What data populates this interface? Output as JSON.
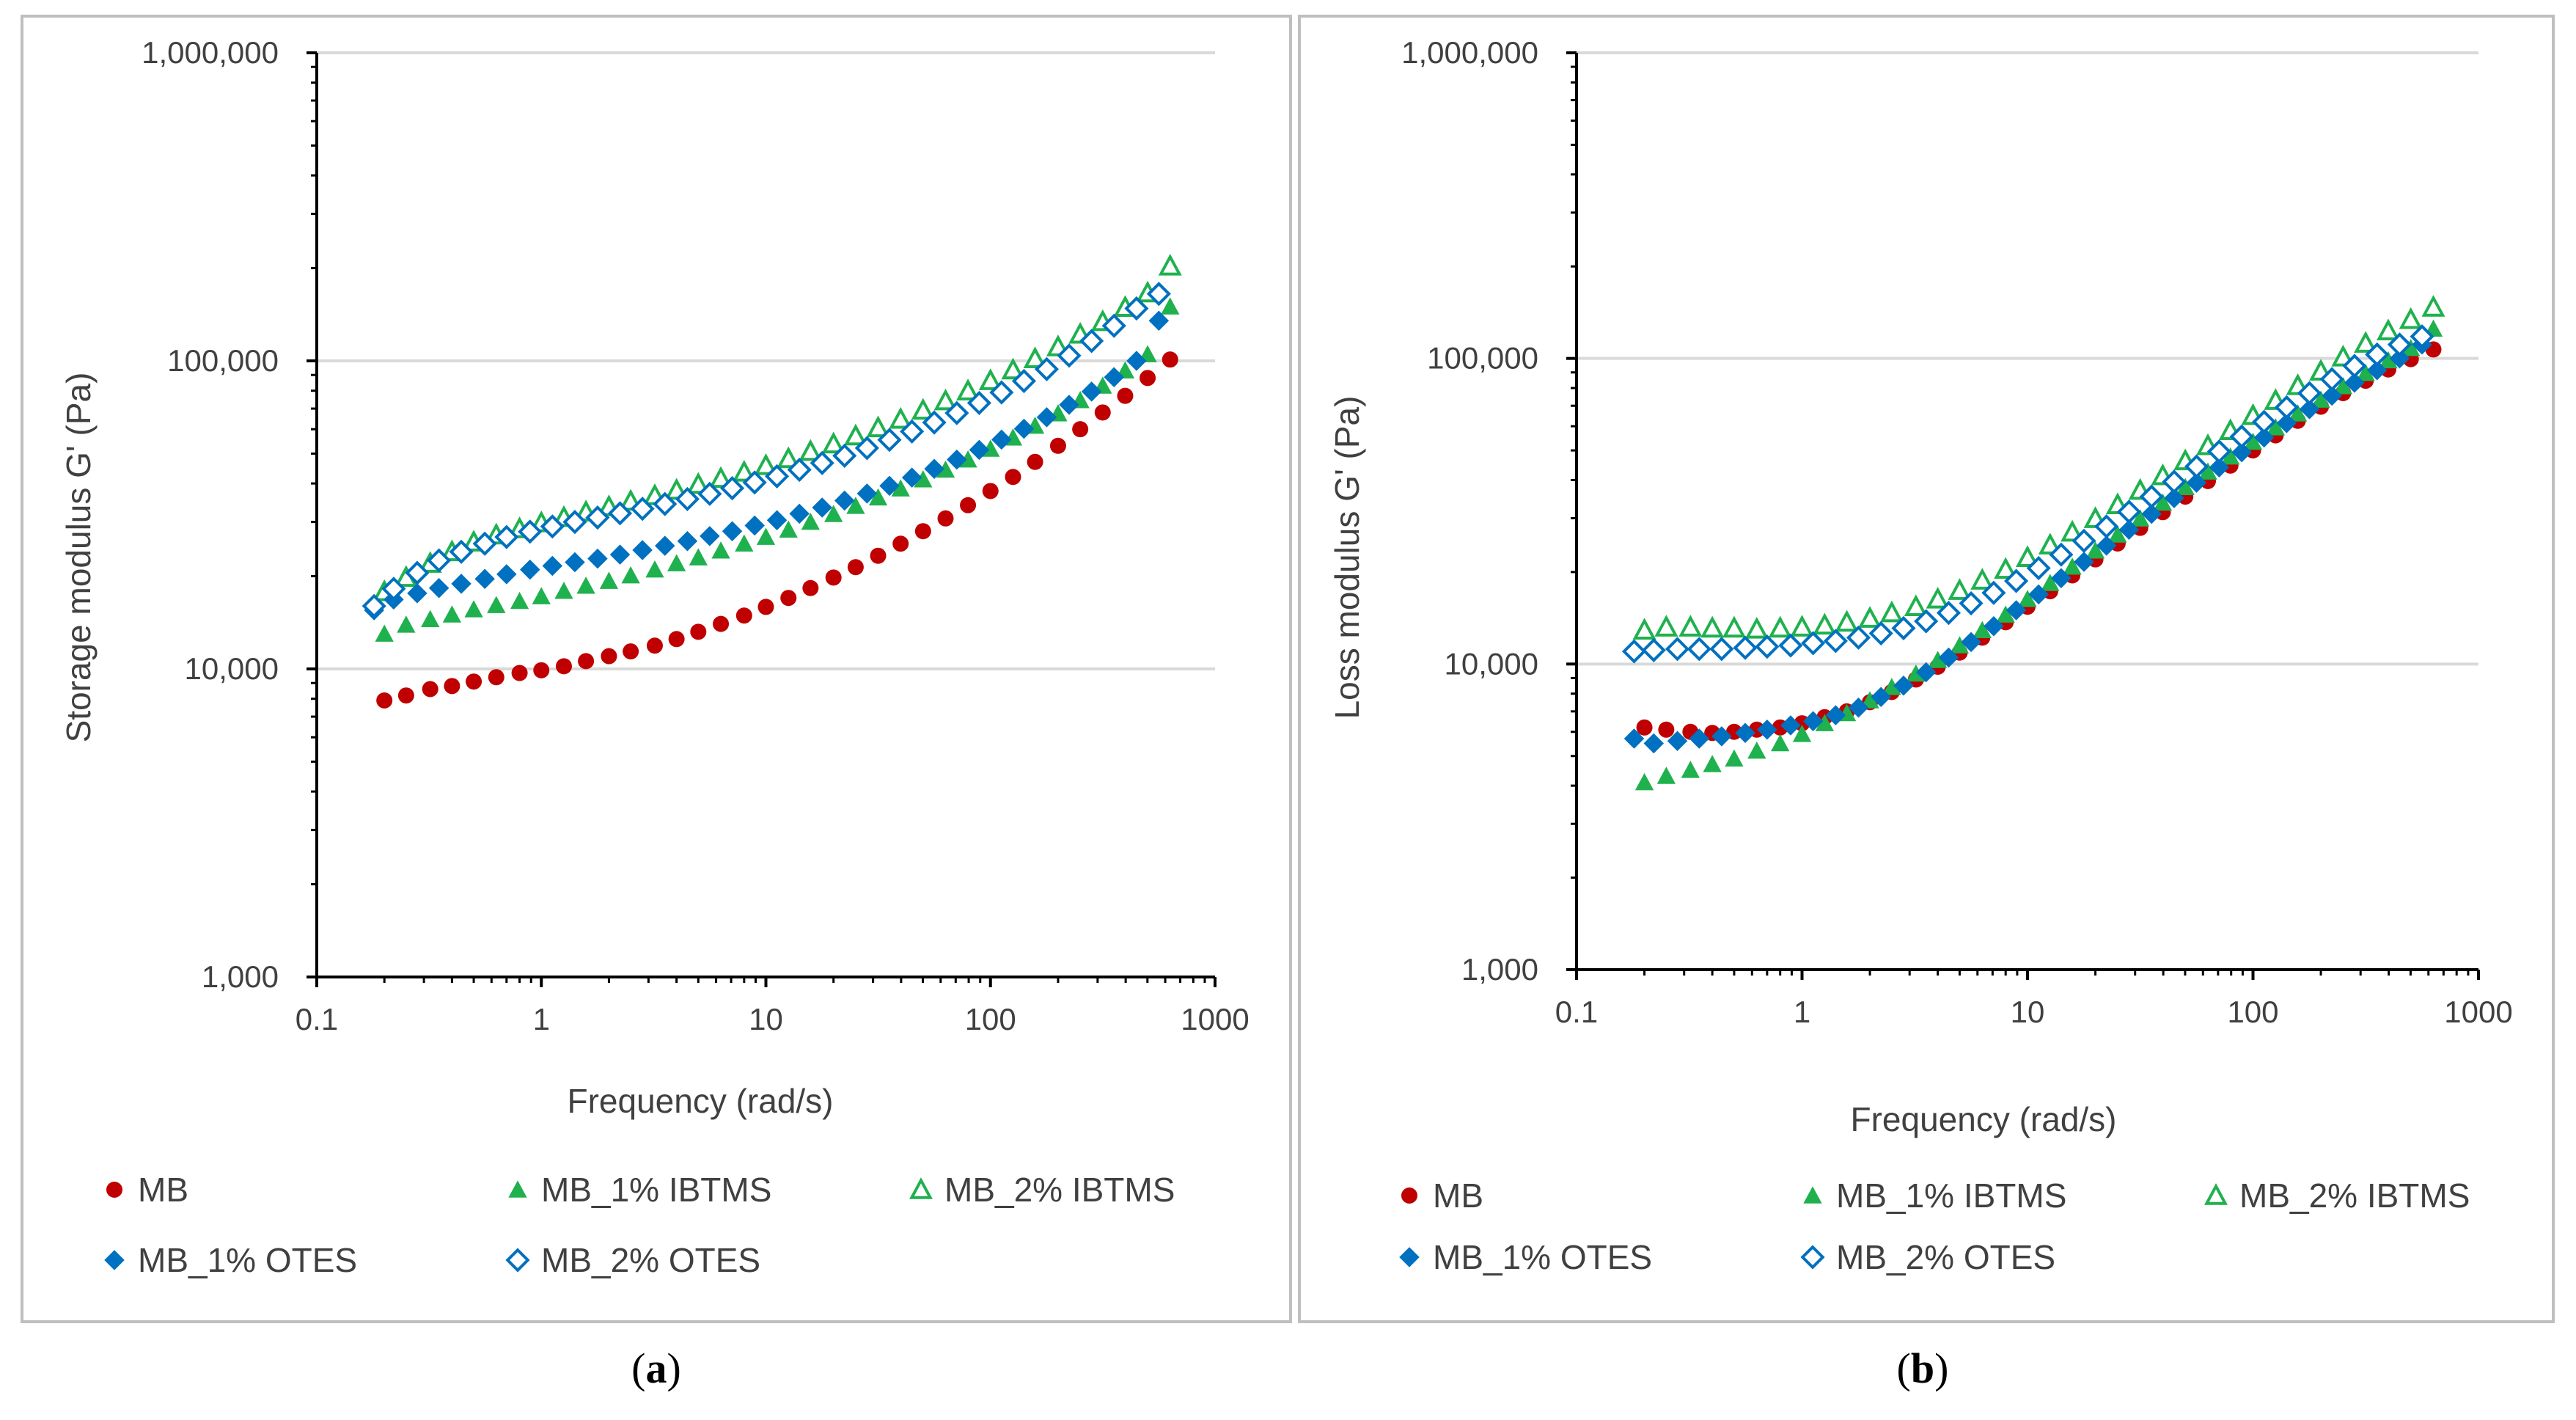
{
  "colors": {
    "MB": "#C00000",
    "IBTMS": "#1FB14E",
    "OTES": "#0070C0",
    "grid": "#D9D9D9",
    "frame": "#BFBFBF",
    "text": "#404040"
  },
  "chart_data": [
    {
      "type": "scatter",
      "panel": "a",
      "caption_open": "(",
      "caption_letter": "a",
      "caption_close": ")",
      "xlabel": "Frequency (rad/s)",
      "ylabel": "Storage modulus G' (Pa)",
      "xscale": "log",
      "yscale": "log",
      "xlim": [
        0.1,
        1000
      ],
      "ylim": [
        1000,
        1000000
      ],
      "xticks": [
        0.1,
        1,
        10,
        100,
        1000
      ],
      "xtick_labels": [
        "0.1",
        "1",
        "10",
        "100",
        "1000"
      ],
      "yticks": [
        1000,
        10000,
        100000,
        1000000
      ],
      "ytick_labels": [
        "1,000",
        "10,000",
        "100,000",
        "1,000,000"
      ],
      "grid": "horizontal",
      "series": [
        {
          "name": "MB",
          "marker": "circle",
          "color_key": "MB",
          "x": [
            0.2,
            0.25,
            0.32,
            0.4,
            0.5,
            0.63,
            0.8,
            1.0,
            1.26,
            1.58,
            2.0,
            2.5,
            3.2,
            4.0,
            5.0,
            6.3,
            8.0,
            10.0,
            12.6,
            15.8,
            20.0,
            25.1,
            31.6,
            39.8,
            50.1,
            63.1,
            79.4,
            100,
            126,
            158,
            200,
            251,
            316,
            398,
            501,
            631
          ],
          "y": [
            7900,
            8200,
            8600,
            8800,
            9100,
            9400,
            9700,
            9900,
            10200,
            10600,
            11000,
            11400,
            11900,
            12500,
            13200,
            14000,
            14900,
            15900,
            17000,
            18300,
            19800,
            21400,
            23300,
            25500,
            28000,
            30800,
            34000,
            37800,
            42000,
            47000,
            53000,
            60000,
            68000,
            77000,
            88000,
            101000
          ]
        },
        {
          "name": "MB_1% IBTMS",
          "marker": "triangle",
          "filled": true,
          "color_key": "IBTMS",
          "x": [
            0.2,
            0.25,
            0.32,
            0.4,
            0.5,
            0.63,
            0.8,
            1.0,
            1.26,
            1.58,
            2.0,
            2.5,
            3.2,
            4.0,
            5.0,
            6.3,
            8.0,
            10.0,
            12.6,
            15.8,
            20.0,
            25.1,
            31.6,
            39.8,
            50.1,
            63.1,
            79.4,
            100,
            126,
            158,
            200,
            251,
            316,
            398,
            501,
            631
          ],
          "y": [
            13000,
            13900,
            14500,
            15000,
            15600,
            16100,
            16600,
            17200,
            17900,
            18600,
            19300,
            20100,
            21000,
            22000,
            23000,
            24200,
            25500,
            26800,
            28300,
            30000,
            31800,
            33800,
            36000,
            38500,
            41200,
            44300,
            47800,
            51800,
            56300,
            61500,
            67500,
            74500,
            83000,
            93000,
            105000,
            150000
          ]
        },
        {
          "name": "MB_2% IBTMS",
          "marker": "triangle",
          "filled": false,
          "color_key": "IBTMS",
          "x": [
            0.2,
            0.25,
            0.32,
            0.4,
            0.5,
            0.63,
            0.8,
            1.0,
            1.26,
            1.58,
            2.0,
            2.5,
            3.2,
            4.0,
            5.0,
            6.3,
            8.0,
            10.0,
            12.6,
            15.8,
            20.0,
            25.1,
            31.6,
            39.8,
            50.1,
            63.1,
            79.4,
            100,
            126,
            158,
            200,
            251,
            316,
            398,
            501,
            631
          ],
          "y": [
            17800,
            19800,
            22000,
            24000,
            25800,
            27200,
            28500,
            29800,
            31000,
            32300,
            33600,
            35000,
            36500,
            38000,
            39700,
            41500,
            43500,
            45700,
            48100,
            50800,
            53700,
            57000,
            60600,
            64600,
            69100,
            74100,
            79800,
            86200,
            93400,
            101500,
            111000,
            122000,
            134000,
            149000,
            166000,
            203000
          ]
        },
        {
          "name": "MB_1% OTES",
          "marker": "diamond",
          "filled": true,
          "color_key": "OTES",
          "x": [
            0.18,
            0.22,
            0.28,
            0.35,
            0.44,
            0.56,
            0.7,
            0.89,
            1.12,
            1.41,
            1.78,
            2.24,
            2.82,
            3.55,
            4.47,
            5.62,
            7.08,
            8.91,
            11.2,
            14.1,
            17.8,
            22.4,
            28.2,
            35.5,
            44.7,
            56.2,
            70.8,
            89.1,
            112,
            141,
            178,
            224,
            282,
            355,
            447,
            562
          ],
          "y": [
            15500,
            16800,
            17600,
            18300,
            18900,
            19600,
            20300,
            21000,
            21600,
            22200,
            22800,
            23500,
            24300,
            25100,
            26000,
            27000,
            28000,
            29200,
            30400,
            31900,
            33400,
            35200,
            37100,
            39300,
            41800,
            44600,
            47800,
            51400,
            55500,
            60200,
            65600,
            72000,
            79500,
            88500,
            100000,
            135000
          ]
        },
        {
          "name": "MB_2% OTES",
          "marker": "diamond",
          "filled": false,
          "color_key": "OTES",
          "x": [
            0.18,
            0.22,
            0.28,
            0.35,
            0.44,
            0.56,
            0.7,
            0.89,
            1.12,
            1.41,
            1.78,
            2.24,
            2.82,
            3.55,
            4.47,
            5.62,
            7.08,
            8.91,
            11.2,
            14.1,
            17.8,
            22.4,
            28.2,
            35.5,
            44.7,
            56.2,
            70.8,
            89.1,
            112,
            141,
            178,
            224,
            282,
            355,
            447,
            562
          ],
          "y": [
            16000,
            18200,
            20500,
            22500,
            24000,
            25500,
            26800,
            27900,
            29000,
            30000,
            31000,
            32000,
            33100,
            34300,
            35600,
            37000,
            38600,
            40300,
            42200,
            44300,
            46600,
            49200,
            52100,
            55400,
            59000,
            63100,
            67700,
            73000,
            79000,
            86000,
            94000,
            104000,
            116000,
            130000,
            148000,
            165000
          ]
        }
      ]
    },
    {
      "type": "scatter",
      "panel": "b",
      "caption_open": "(",
      "caption_letter": "b",
      "caption_close": ")",
      "xlabel": "Frequency (rad/s)",
      "ylabel": "Loss modulus G' (Pa)",
      "xscale": "log",
      "yscale": "log",
      "xlim": [
        0.1,
        1000
      ],
      "ylim": [
        1000,
        1000000
      ],
      "xticks": [
        0.1,
        1,
        10,
        100,
        1000
      ],
      "xtick_labels": [
        "0.1",
        "1",
        "10",
        "100",
        "1000"
      ],
      "yticks": [
        1000,
        10000,
        100000,
        1000000
      ],
      "ytick_labels": [
        "1,000",
        "10,000",
        "100,000",
        "1,000,000"
      ],
      "grid": "horizontal",
      "series": [
        {
          "name": "MB",
          "marker": "circle",
          "color_key": "MB",
          "x": [
            0.2,
            0.25,
            0.32,
            0.4,
            0.5,
            0.63,
            0.8,
            1.0,
            1.26,
            1.58,
            2.0,
            2.5,
            3.2,
            4.0,
            5.0,
            6.3,
            8.0,
            10.0,
            12.6,
            15.8,
            20.0,
            25.1,
            31.6,
            39.8,
            50.1,
            63.1,
            79.4,
            100,
            126,
            158,
            200,
            251,
            316,
            398,
            501,
            631
          ],
          "y": [
            6200,
            6100,
            6000,
            5950,
            6000,
            6100,
            6200,
            6400,
            6700,
            7000,
            7500,
            8100,
            8900,
            9800,
            10900,
            12200,
            13700,
            15400,
            17300,
            19500,
            22000,
            24800,
            27900,
            31400,
            35300,
            39700,
            44600,
            50000,
            56000,
            62500,
            69500,
            77000,
            84500,
            92000,
            99500,
            107000
          ]
        },
        {
          "name": "MB_1% IBTMS",
          "marker": "triangle",
          "filled": true,
          "color_key": "IBTMS",
          "x": [
            0.2,
            0.25,
            0.32,
            0.4,
            0.5,
            0.63,
            0.8,
            1.0,
            1.26,
            1.58,
            2.0,
            2.5,
            3.2,
            4.0,
            5.0,
            6.3,
            8.0,
            10.0,
            12.6,
            15.8,
            20.0,
            25.1,
            31.6,
            39.8,
            50.1,
            63.1,
            79.4,
            100,
            126,
            158,
            200,
            251,
            316,
            398,
            501,
            631
          ],
          "y": [
            4100,
            4300,
            4500,
            4700,
            4900,
            5200,
            5500,
            5900,
            6400,
            6900,
            7600,
            8400,
            9300,
            10300,
            11500,
            12900,
            14500,
            16300,
            18400,
            20800,
            23500,
            26500,
            29900,
            33700,
            37900,
            42600,
            47700,
            53300,
            59400,
            66000,
            73200,
            81000,
            89500,
            98500,
            108000,
            125000
          ]
        },
        {
          "name": "MB_2% IBTMS",
          "marker": "triangle",
          "filled": false,
          "color_key": "IBTMS",
          "x": [
            0.2,
            0.25,
            0.32,
            0.4,
            0.5,
            0.63,
            0.8,
            1.0,
            1.26,
            1.58,
            2.0,
            2.5,
            3.2,
            4.0,
            5.0,
            6.3,
            8.0,
            10.0,
            12.6,
            15.8,
            20.0,
            25.1,
            31.6,
            39.8,
            50.1,
            63.1,
            79.4,
            100,
            126,
            158,
            200,
            251,
            316,
            398,
            501,
            631
          ],
          "y": [
            12900,
            13200,
            13200,
            13100,
            13100,
            13000,
            13100,
            13200,
            13400,
            13700,
            14100,
            14700,
            15400,
            16300,
            17400,
            18800,
            20400,
            22300,
            24500,
            27000,
            29900,
            33200,
            37000,
            41300,
            46200,
            51800,
            58000,
            65000,
            72800,
            81400,
            90800,
            101000,
            112000,
            123000,
            134000,
            147000
          ]
        },
        {
          "name": "MB_1% OTES",
          "marker": "diamond",
          "filled": true,
          "color_key": "OTES",
          "x": [
            0.18,
            0.22,
            0.28,
            0.35,
            0.44,
            0.56,
            0.7,
            0.89,
            1.12,
            1.41,
            1.78,
            2.24,
            2.82,
            3.55,
            4.47,
            5.62,
            7.08,
            8.91,
            11.2,
            14.1,
            17.8,
            22.4,
            28.2,
            35.5,
            44.7,
            56.2,
            70.8,
            89.1,
            112,
            141,
            178,
            224,
            282,
            355,
            447,
            562
          ],
          "y": [
            5700,
            5500,
            5600,
            5700,
            5800,
            5950,
            6100,
            6300,
            6500,
            6800,
            7200,
            7800,
            8500,
            9400,
            10500,
            11800,
            13300,
            15000,
            16900,
            19100,
            21600,
            24400,
            27500,
            31000,
            34900,
            39200,
            44000,
            49300,
            55100,
            61400,
            68200,
            75500,
            83300,
            91500,
            100000,
            111000
          ]
        },
        {
          "name": "MB_2% OTES",
          "marker": "diamond",
          "filled": false,
          "color_key": "OTES",
          "x": [
            0.18,
            0.22,
            0.28,
            0.35,
            0.44,
            0.56,
            0.7,
            0.89,
            1.12,
            1.41,
            1.78,
            2.24,
            2.82,
            3.55,
            4.47,
            5.62,
            7.08,
            8.91,
            11.2,
            14.1,
            17.8,
            22.4,
            28.2,
            35.5,
            44.7,
            56.2,
            70.8,
            89.1,
            112,
            141,
            178,
            224,
            282,
            355,
            447,
            562
          ],
          "y": [
            11000,
            11100,
            11200,
            11200,
            11200,
            11300,
            11400,
            11500,
            11700,
            11900,
            12200,
            12600,
            13100,
            13800,
            14700,
            15800,
            17100,
            18700,
            20600,
            22800,
            25300,
            28200,
            31500,
            35300,
            39500,
            44300,
            49600,
            55500,
            62000,
            69200,
            77000,
            85500,
            94500,
            103000,
            111000,
            118000
          ]
        }
      ]
    }
  ]
}
